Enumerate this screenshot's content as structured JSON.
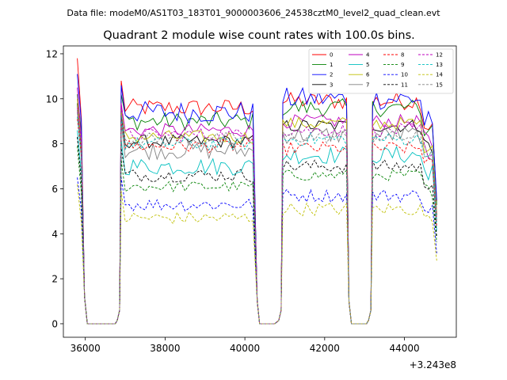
{
  "chart_data": {
    "type": "line",
    "suptitle": "Data file: modeM0/AS1T03_183T01_9000003606_24538cztM0_level2_quad_clean.evt",
    "title": "Quadrant 2 module wise count rates with 100.0s bins.",
    "xlabel": "",
    "ylabel": "",
    "x_offset_label": "+3.243e8",
    "xlim": [
      35450,
      45300
    ],
    "ylim": [
      -0.6,
      12.35
    ],
    "xticks": [
      36000,
      38000,
      40000,
      42000,
      44000
    ],
    "xtick_labels": [
      "36000",
      "38000",
      "40000",
      "42000",
      "44000"
    ],
    "yticks": [
      0,
      2,
      4,
      6,
      8,
      10,
      12
    ],
    "ytick_labels": [
      "0",
      "2",
      "4",
      "6",
      "8",
      "10",
      "12"
    ],
    "legend_position": "upper-right",
    "gti_segments": [
      [
        36900,
        40250
      ],
      [
        40950,
        42550
      ],
      [
        43200,
        44750
      ]
    ],
    "initial_segment": [
      35800,
      35900
    ],
    "bin_size_s": 100,
    "series": [
      {
        "name": "0",
        "color": "#ff0000",
        "dash": "solid",
        "level": 9.6,
        "level_after_gti1": 9.9,
        "spike_start": 11.8,
        "amp": 0.4
      },
      {
        "name": "1",
        "color": "#008000",
        "dash": "solid",
        "level": 9.0,
        "level_after_gti1": 9.6,
        "spike_start": 10.2,
        "amp": 0.4
      },
      {
        "name": "2",
        "color": "#0000ff",
        "dash": "solid",
        "level": 9.4,
        "level_after_gti1": 10.0,
        "spike_start": 11.1,
        "amp": 0.5
      },
      {
        "name": "3",
        "color": "#000000",
        "dash": "solid",
        "level": 8.1,
        "level_after_gti1": 8.8,
        "spike_start": 9.8,
        "amp": 0.3
      },
      {
        "name": "4",
        "color": "#bf00bf",
        "dash": "solid",
        "level": 8.6,
        "level_after_gti1": 9.0,
        "spike_start": 10.5,
        "amp": 0.3
      },
      {
        "name": "5",
        "color": "#00bfbf",
        "dash": "solid",
        "level": 7.0,
        "level_after_gti1": 7.5,
        "spike_start": 8.6,
        "amp": 0.4
      },
      {
        "name": "6",
        "color": "#bfbf00",
        "dash": "solid",
        "level": 8.3,
        "level_after_gti1": 8.9,
        "spike_start": 10.0,
        "amp": 0.3
      },
      {
        "name": "7",
        "color": "#808080",
        "dash": "solid",
        "level": 7.7,
        "level_after_gti1": 8.4,
        "spike_start": 9.5,
        "amp": 0.4
      },
      {
        "name": "8",
        "color": "#ff0000",
        "dash": "dashed",
        "level": 7.9,
        "level_after_gti1": 7.8,
        "spike_start": 9.1,
        "amp": 0.3
      },
      {
        "name": "9",
        "color": "#008000",
        "dash": "dashed",
        "level": 6.1,
        "level_after_gti1": 6.6,
        "spike_start": 7.9,
        "amp": 0.25
      },
      {
        "name": "10",
        "color": "#0000ff",
        "dash": "dashed",
        "level": 5.3,
        "level_after_gti1": 5.7,
        "spike_start": 6.5,
        "amp": 0.3
      },
      {
        "name": "11",
        "color": "#000000",
        "dash": "dashed",
        "level": 6.6,
        "level_after_gti1": 7.0,
        "spike_start": 8.3,
        "amp": 0.3
      },
      {
        "name": "12",
        "color": "#bf00bf",
        "dash": "dashed",
        "level": 8.4,
        "level_after_gti1": 8.6,
        "spike_start": 9.6,
        "amp": 0.3
      },
      {
        "name": "13",
        "color": "#00bfbf",
        "dash": "dashed",
        "level": 8.0,
        "level_after_gti1": 8.2,
        "spike_start": 9.2,
        "amp": 0.3
      },
      {
        "name": "14",
        "color": "#bfbf00",
        "dash": "dashed",
        "level": 4.7,
        "level_after_gti1": 5.1,
        "spike_start": 6.2,
        "amp": 0.3
      },
      {
        "name": "15",
        "color": "#808080",
        "dash": "dashed",
        "level": 8.2,
        "level_after_gti1": 8.3,
        "spike_start": 9.4,
        "amp": 0.3
      }
    ]
  }
}
